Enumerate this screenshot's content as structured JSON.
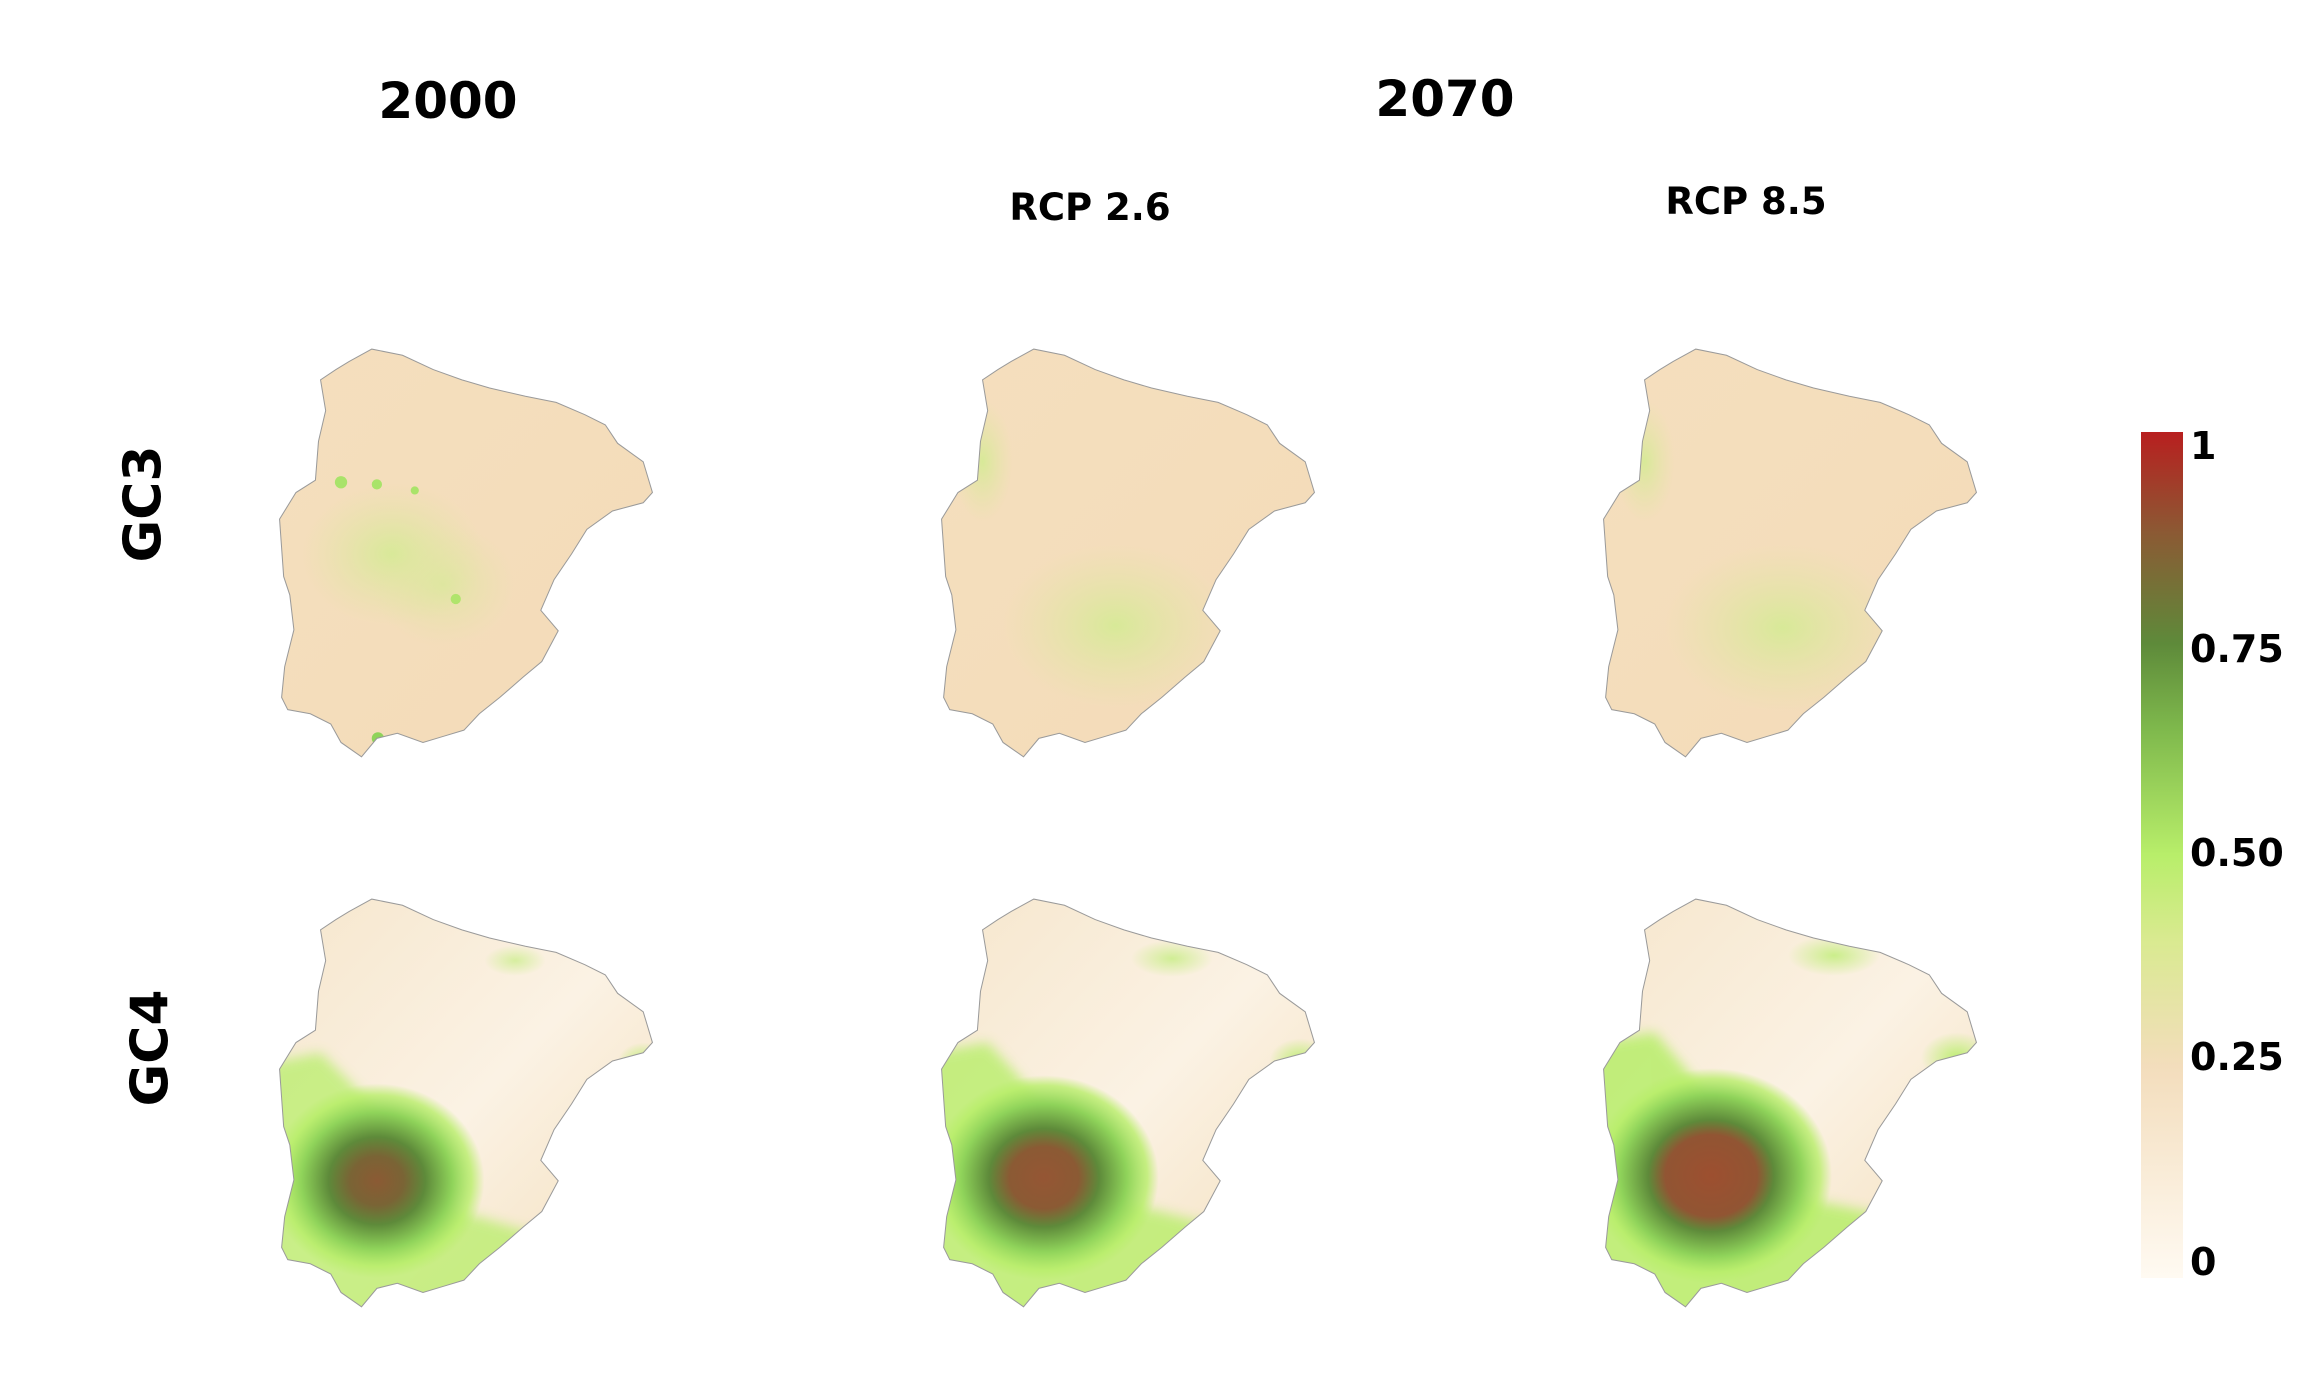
{
  "headers": {
    "col_2000": "2000",
    "col_2070": "2070",
    "rcp_low": "RCP 2.6",
    "rcp_high": "RCP 8.5"
  },
  "rows": {
    "gc3": "GC3",
    "gc4": "GC4"
  },
  "legend": {
    "ticks": [
      "0",
      "0.25",
      "0.50",
      "0.75",
      "1"
    ],
    "tick_values": [
      0,
      0.25,
      0.5,
      0.75,
      1
    ],
    "colors": {
      "0": "#fffaf2",
      "0.25": "#f3ddbc",
      "0.40": "#d9ea90",
      "0.50": "#b8ee6a",
      "0.65": "#7eb84c",
      "0.75": "#5e8a3a",
      "0.88": "#8b5a34",
      "1": "#b81f1f"
    }
  },
  "panels": [
    {
      "row": "GC3",
      "period": "2000",
      "hotspot_level": 0.42
    },
    {
      "row": "GC3",
      "period": "RCP 2.6",
      "hotspot_level": 0.42
    },
    {
      "row": "GC3",
      "period": "RCP 8.5",
      "hotspot_level": 0.42
    },
    {
      "row": "GC4",
      "period": "2000",
      "hotspot_level": 0.88
    },
    {
      "row": "GC4",
      "period": "RCP 2.6",
      "hotspot_level": 0.9
    },
    {
      "row": "GC4",
      "period": "RCP 8.5",
      "hotspot_level": 0.95
    }
  ]
}
